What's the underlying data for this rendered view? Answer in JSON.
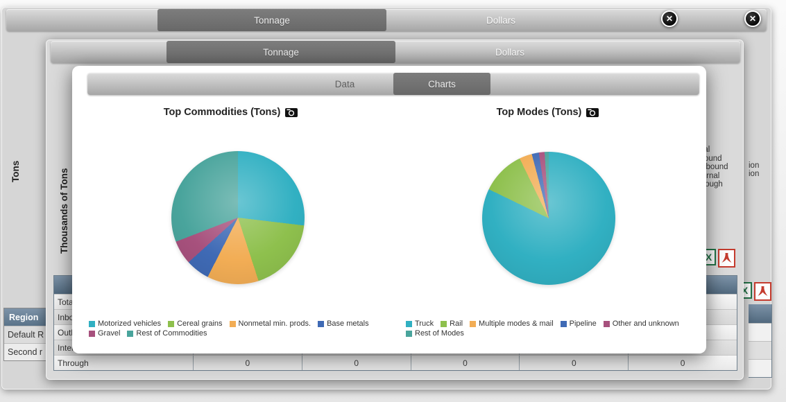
{
  "window1": {
    "tabs": [
      {
        "label": "Tonnage",
        "selected": true
      },
      {
        "label": "Dollars",
        "selected": false
      }
    ],
    "close_icon": "✕",
    "y_axis_label": "Tons",
    "legend_fragments": [
      "ion",
      "ion"
    ],
    "region_table": {
      "header": "Region",
      "rows": [
        "Default R",
        "Second r"
      ]
    },
    "export_icons": [
      "excel-export",
      "pdf-export"
    ]
  },
  "window2": {
    "tabs": [
      {
        "label": "Tonnage",
        "selected": true
      },
      {
        "label": "Dollars",
        "selected": false
      }
    ],
    "close_icon": "✕",
    "y_axis_label": "Thousands of Tons",
    "legend_items": [
      "Total",
      "Inbound",
      "Outbound",
      "Internal",
      "Through"
    ],
    "export_icons": [
      "excel-export",
      "pdf-export"
    ],
    "table": {
      "rows": [
        {
          "label": "Total",
          "values": null
        },
        {
          "label": "Inbound",
          "values": null
        },
        {
          "label": "Outbound",
          "values": null
        },
        {
          "label": "Internal",
          "values": null
        },
        {
          "label": "Through",
          "values": [
            "0",
            "0",
            "0",
            "0",
            "0"
          ]
        }
      ]
    }
  },
  "modal": {
    "tabs": [
      {
        "label": "Data",
        "selected": false
      },
      {
        "label": "Charts",
        "selected": true
      }
    ]
  },
  "chart_data": [
    {
      "type": "pie",
      "title": "Top Commodities (Tons)",
      "labels": [
        "Motorized vehicles",
        "Cereal grains",
        "Nonmetal min. prods.",
        "Base metals",
        "Gravel",
        "Rest of Commodities"
      ],
      "values_pct": [
        26.9,
        18.1,
        12.5,
        5.8,
        5.8,
        30.9
      ],
      "colors": [
        "#31b0c2",
        "#8ec04d",
        "#f2ad55",
        "#3f6ab5",
        "#a7517d",
        "#49a49c"
      ],
      "legend_position": "bottom"
    },
    {
      "type": "pie",
      "title": "Top Modes (Tons)",
      "labels": [
        "Truck",
        "Rail",
        "Multiple modes & mail",
        "Pipeline",
        "Other and unknown",
        "Rest of Modes"
      ],
      "values_pct": [
        82.2,
        10.6,
        3.1,
        1.7,
        1.4,
        1.0
      ],
      "colors": [
        "#31b0c2",
        "#8ec04d",
        "#f2ad55",
        "#3f6ab5",
        "#a7517d",
        "#49a49c"
      ],
      "legend_position": "bottom"
    }
  ]
}
